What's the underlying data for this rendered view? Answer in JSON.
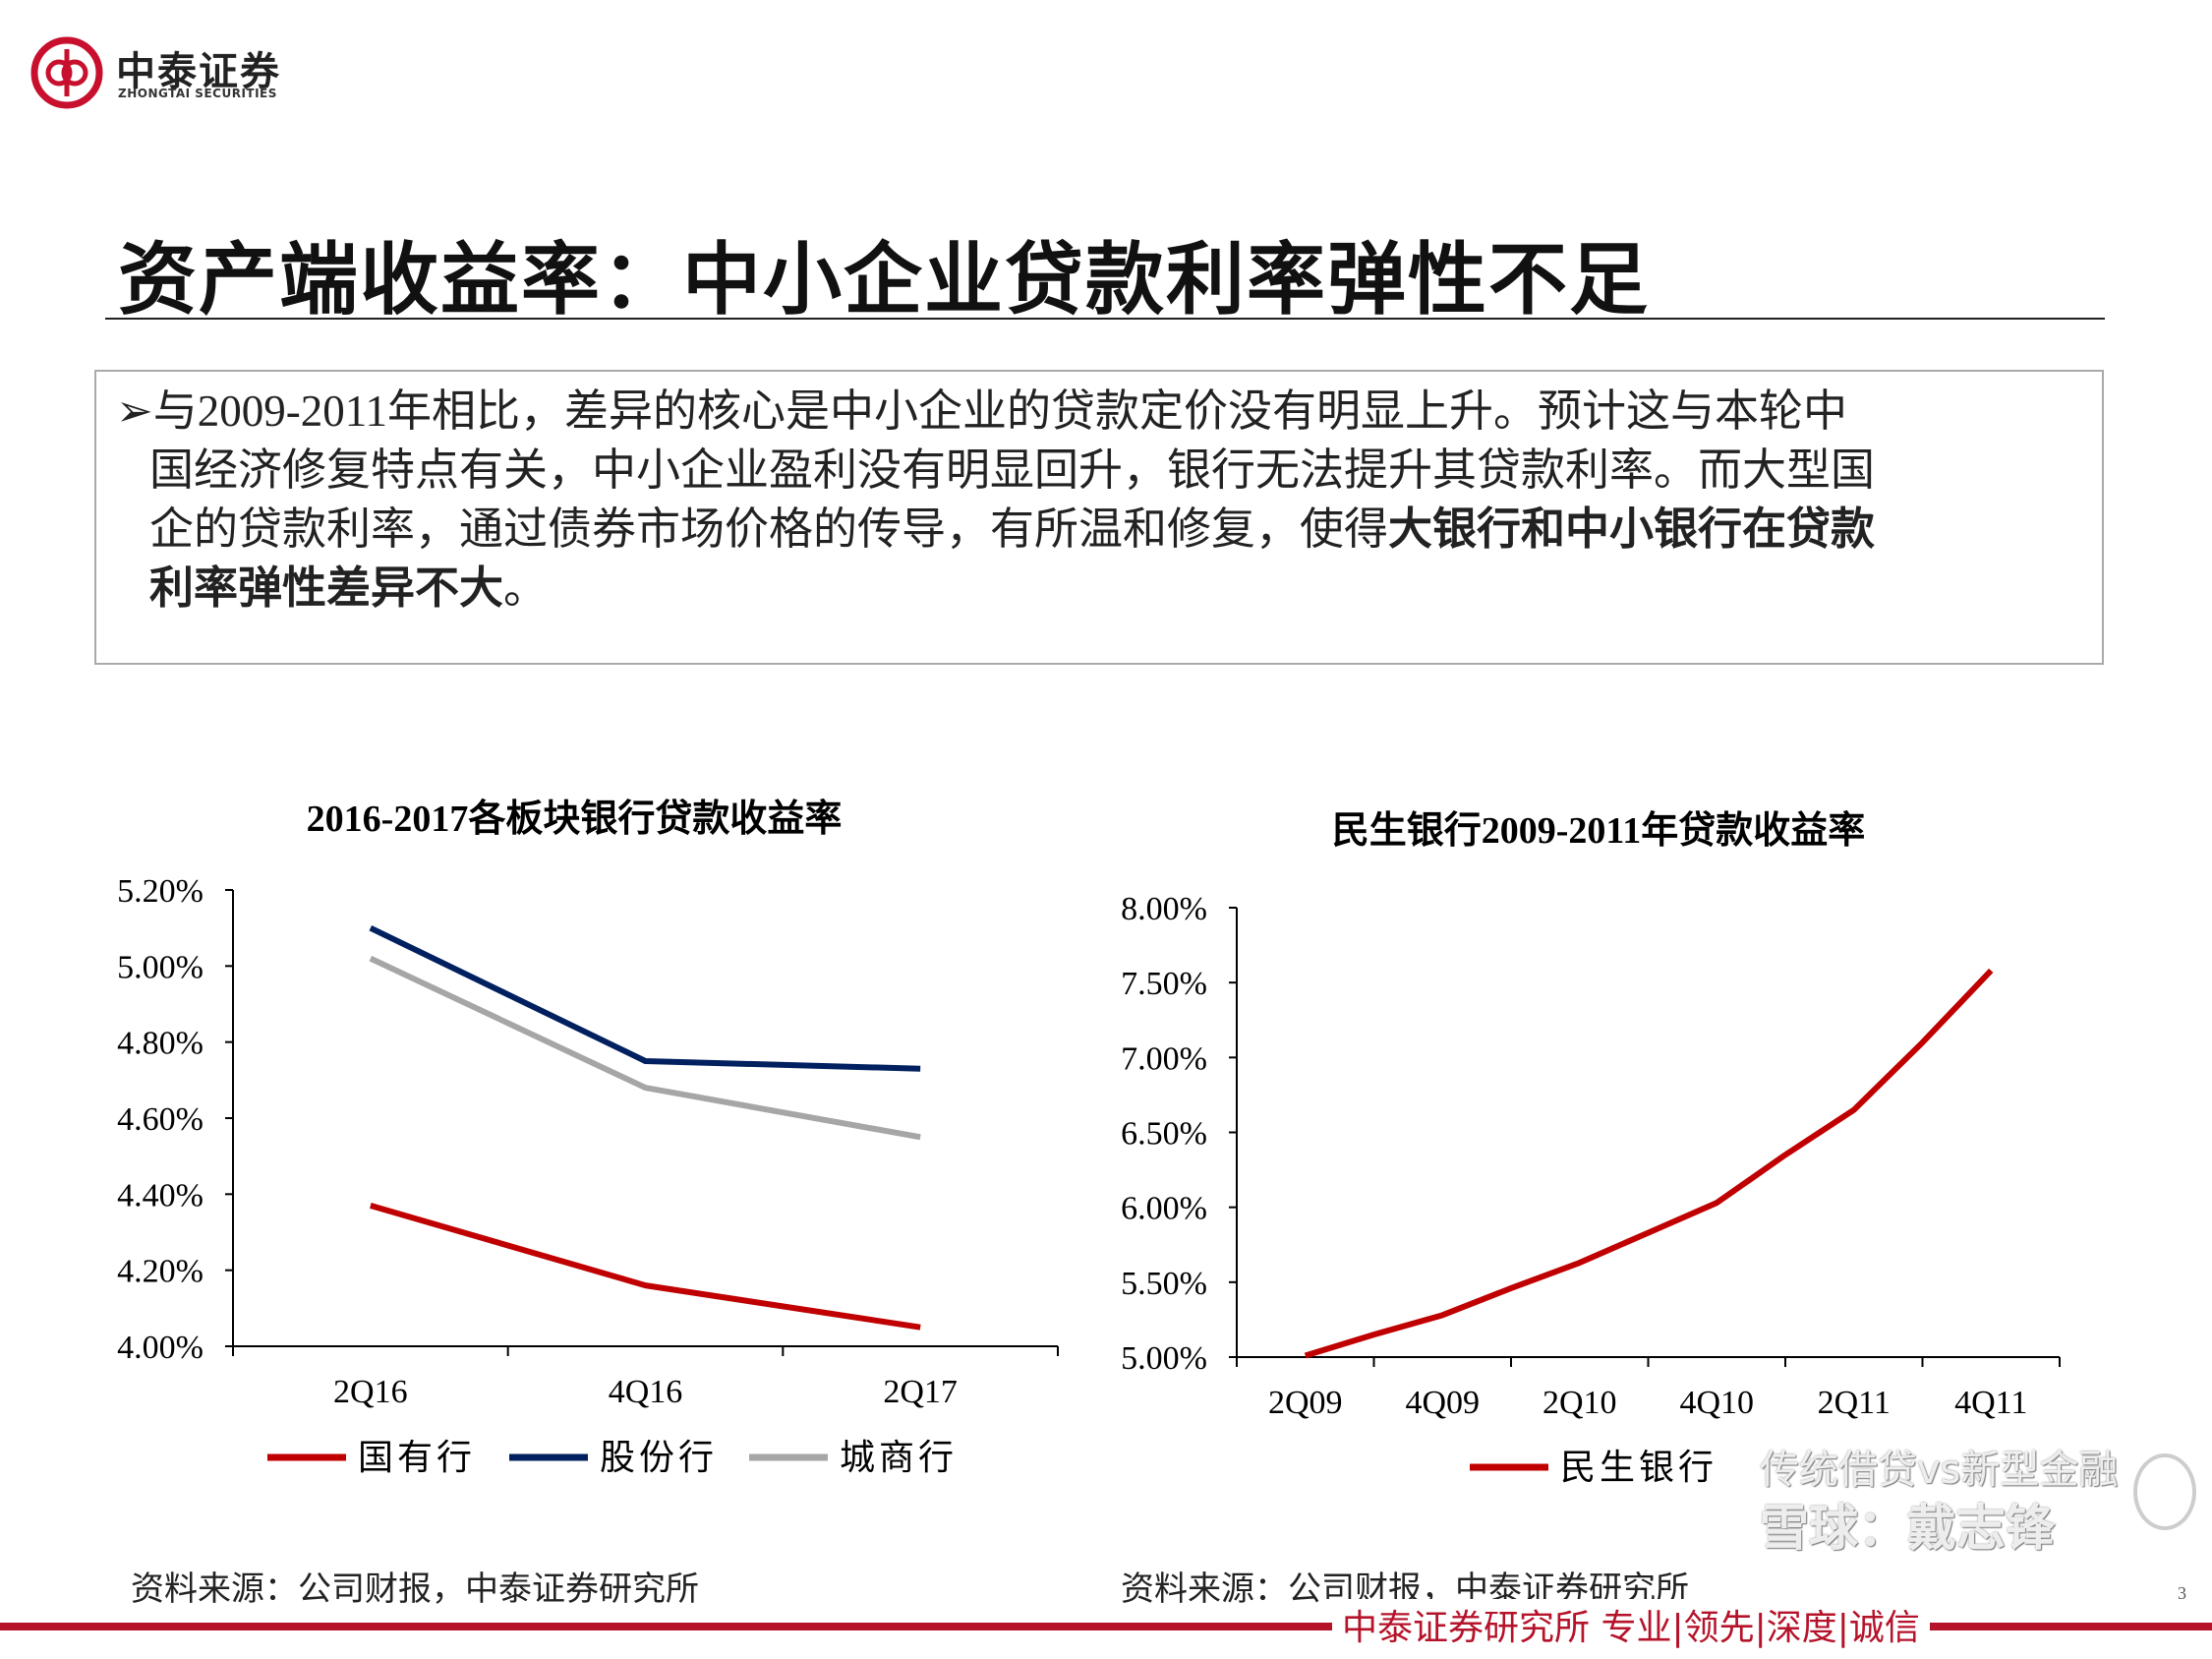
{
  "header": {
    "logo_text": "中泰证券",
    "logo_subtext": "ZHONGTAI SECURITIES",
    "brand_color": "#c8102e"
  },
  "title": "资产端收益率：中小企业贷款利率弹性不足",
  "bullet": {
    "marker": "➢",
    "line1": "与2009-2011年相比，差异的核心是中小企业的贷款定价没有明显上升。预计这与本轮中",
    "line2": "国经济修复特点有关，中小企业盈利没有明显回升，银行无法提升其贷款利率。而大型国",
    "line3_normal": "企的贷款利率，通过债券市场价格的传导，有所温和修复，使得",
    "line3_bold": "大银行和中小银行在贷款",
    "line4_bold": "利率弹性差异不大",
    "line4_end": "。"
  },
  "chart_data": [
    {
      "type": "line",
      "title": "2016-2017各板块银行贷款收益率",
      "categories": [
        "2Q16",
        "4Q16",
        "2Q17"
      ],
      "ylim": [
        4.0,
        5.2
      ],
      "yticks": [
        "4.00%",
        "4.20%",
        "4.40%",
        "4.60%",
        "4.80%",
        "5.00%",
        "5.20%"
      ],
      "legend_position": "bottom",
      "series": [
        {
          "name": "国有行",
          "color": "#c00000",
          "values": [
            4.37,
            4.16,
            4.05
          ]
        },
        {
          "name": "股份行",
          "color": "#002060",
          "values": [
            5.1,
            4.75,
            4.73
          ]
        },
        {
          "name": "城商行",
          "color": "#a6a6a6",
          "values": [
            5.02,
            4.68,
            4.55
          ]
        }
      ],
      "source": "资料来源：公司财报，中泰证券研究所"
    },
    {
      "type": "line",
      "title": "民生银行2009-2011年贷款收益率",
      "x": [
        "2Q09",
        "3Q09",
        "4Q09",
        "1Q10",
        "2Q10",
        "3Q10",
        "4Q10",
        "1Q11",
        "2Q11",
        "3Q11",
        "4Q11"
      ],
      "tick_labels": [
        "2Q09",
        "4Q09",
        "2Q10",
        "4Q10",
        "2Q11",
        "4Q11"
      ],
      "ylim": [
        5.0,
        8.0
      ],
      "yticks": [
        "5.00%",
        "5.50%",
        "6.00%",
        "6.50%",
        "7.00%",
        "7.50%",
        "8.00%"
      ],
      "legend_position": "bottom",
      "series": [
        {
          "name": "民生银行",
          "color": "#c00000",
          "values": [
            5.01,
            5.15,
            5.28,
            5.46,
            5.63,
            5.83,
            6.03,
            6.35,
            6.65,
            7.1,
            7.58
          ]
        }
      ],
      "source": "资料来源：公司财报，中泰证券研究所"
    }
  ],
  "footer": {
    "text": "中泰证券研究所 专业|领先|深度|诚信",
    "page": "3"
  },
  "watermark": {
    "line1": "传统借贷vs新型金融",
    "line2": "雪球：戴志锋"
  }
}
